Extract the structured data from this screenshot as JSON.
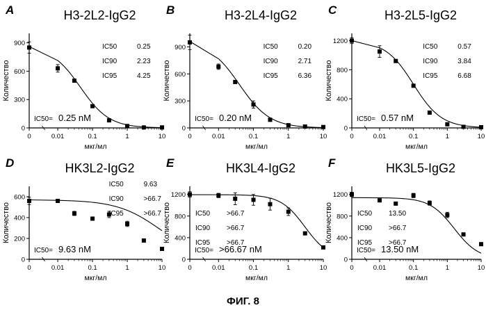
{
  "figure_caption": "ФИГ. 8",
  "chart_data": [
    {
      "type": "scatter",
      "panel_letter": "A",
      "title": "H3-2L2-IgG2",
      "xlabel": "мкг/мл",
      "ylabel": "Количество",
      "x_ticks": [
        "0",
        "0.01",
        "0.1",
        "1",
        "10"
      ],
      "y_ticks": [
        0,
        300,
        600,
        900
      ],
      "ylim": [
        0,
        1000
      ],
      "stats": [
        [
          "IC50",
          "0.25"
        ],
        [
          "IC90",
          "2.23"
        ],
        [
          "IC95",
          "4.25"
        ]
      ],
      "ic50_prefix": "IC50=",
      "ic50_value": "0.25 nM",
      "x": [
        0,
        0.01,
        0.03,
        0.1,
        0.3,
        1,
        3,
        10
      ],
      "y": [
        850,
        630,
        500,
        230,
        80,
        20,
        5,
        5
      ],
      "err": [
        60,
        40,
        15,
        15,
        10,
        5,
        5,
        5
      ]
    },
    {
      "type": "scatter",
      "panel_letter": "B",
      "title": "H3-2L4-IgG2",
      "xlabel": "мкг/мл",
      "ylabel": "Количество",
      "x_ticks": [
        "0",
        "0.01",
        "0.1",
        "1",
        "10"
      ],
      "y_ticks": [
        0,
        300,
        600,
        900
      ],
      "ylim": [
        0,
        1050
      ],
      "stats": [
        [
          "IC50",
          "0.20"
        ],
        [
          "IC90",
          "2.71"
        ],
        [
          "IC95",
          "6.36"
        ]
      ],
      "ic50_prefix": "IC50=",
      "ic50_value": "0.20 nM",
      "x": [
        0,
        0.01,
        0.03,
        0.1,
        0.3,
        1,
        3,
        10
      ],
      "y": [
        950,
        680,
        510,
        260,
        90,
        30,
        15,
        10
      ],
      "err": [
        80,
        30,
        15,
        40,
        10,
        10,
        5,
        5
      ]
    },
    {
      "type": "scatter",
      "panel_letter": "C",
      "title": "H3-2L5-IgG2",
      "xlabel": "мкг/мл",
      "ylabel": "Количество",
      "x_ticks": [
        "0",
        "0.01",
        "0.1",
        "1",
        "10"
      ],
      "y_ticks": [
        0,
        400,
        800,
        1200
      ],
      "ylim": [
        0,
        1300
      ],
      "stats": [
        [
          "IC50",
          "0.57"
        ],
        [
          "IC90",
          "3.84"
        ],
        [
          "IC95",
          "6.68"
        ]
      ],
      "ic50_prefix": "IC50=",
      "ic50_value": "0.57 nM",
      "x": [
        0,
        0.01,
        0.03,
        0.1,
        0.3,
        1,
        3,
        10
      ],
      "y": [
        1200,
        1050,
        920,
        580,
        210,
        50,
        15,
        10
      ],
      "err": [
        40,
        80,
        20,
        15,
        15,
        10,
        5,
        5
      ]
    },
    {
      "type": "scatter",
      "panel_letter": "D",
      "title": "HK3L2-IgG2",
      "xlabel": "мкг/мл",
      "ylabel": "Количество",
      "x_ticks": [
        "0",
        "0.01",
        "0.1",
        "1",
        "10"
      ],
      "y_ticks": [
        0,
        200,
        400,
        600
      ],
      "ylim": [
        0,
        700
      ],
      "stats": [
        [
          "IC50",
          "9.63"
        ],
        [
          "IC90",
          ">66.7"
        ],
        [
          "IC95",
          ">66.7"
        ]
      ],
      "ic50_prefix": "IC50=",
      "ic50_value": "9.63 nM",
      "x": [
        0,
        0.01,
        0.03,
        0.1,
        0.3,
        1,
        3,
        10
      ],
      "y": [
        560,
        560,
        440,
        390,
        430,
        340,
        180,
        100
      ],
      "err": [
        35,
        0,
        20,
        0,
        30,
        25,
        0,
        0
      ]
    },
    {
      "type": "scatter",
      "panel_letter": "E",
      "title": "HK3L4-IgG2",
      "xlabel": "мкг/мл",
      "ylabel": "Количество",
      "x_ticks": [
        "0",
        "0.01",
        "0.1",
        "1",
        "10"
      ],
      "y_ticks": [
        0,
        400,
        800,
        1200
      ],
      "ylim": [
        0,
        1350
      ],
      "stats": [
        [
          "IC50",
          ">66.7"
        ],
        [
          "IC90",
          ">66.7"
        ],
        [
          "IC95",
          ">66.7"
        ]
      ],
      "ic50_prefix": "IC50=",
      "ic50_value": ">66.67 nM",
      "x": [
        0,
        0.01,
        0.03,
        0.1,
        0.3,
        1,
        3,
        10
      ],
      "y": [
        1200,
        1180,
        1120,
        1100,
        1020,
        880,
        480,
        220
      ],
      "err": [
        50,
        40,
        110,
        100,
        110,
        70,
        20,
        20
      ]
    },
    {
      "type": "scatter",
      "panel_letter": "F",
      "title": "HK3L5-IgG2",
      "xlabel": "мкг/мл",
      "ylabel": "Количество",
      "x_ticks": [
        "0",
        "0.01",
        "0.1",
        "1",
        "10"
      ],
      "y_ticks": [
        0,
        400,
        800,
        1200
      ],
      "ylim": [
        0,
        1350
      ],
      "stats": [
        [
          "IC50",
          "13.50"
        ],
        [
          "IC90",
          ">66.7"
        ],
        [
          "IC95",
          ">66.7"
        ]
      ],
      "ic50_prefix": "IC50=",
      "ic50_value": "13.50 nM",
      "x": [
        0,
        0.01,
        0.03,
        0.1,
        0.3,
        1,
        3,
        10
      ],
      "y": [
        1200,
        1090,
        1030,
        1180,
        1040,
        820,
        460,
        280
      ],
      "err": [
        40,
        20,
        20,
        40,
        40,
        50,
        20,
        20
      ]
    }
  ]
}
